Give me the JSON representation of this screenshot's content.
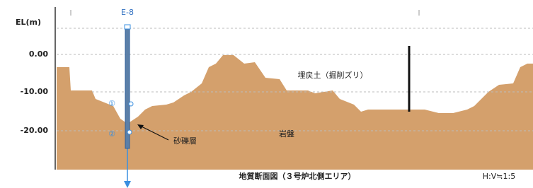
{
  "axis": {
    "label": "EL(m)",
    "ticks": [
      "0.00",
      "-10.00",
      "-20.00"
    ]
  },
  "borehole": {
    "label": "E-8",
    "markers": [
      "①",
      "②"
    ]
  },
  "layers": {
    "fill": "埋戻土（掘削ズリ）",
    "gravel": "砂礫層",
    "bedrock": "岩盤"
  },
  "title": "地質断面図（３号炉北側エリア）",
  "scale": "H:V≒1:5"
}
